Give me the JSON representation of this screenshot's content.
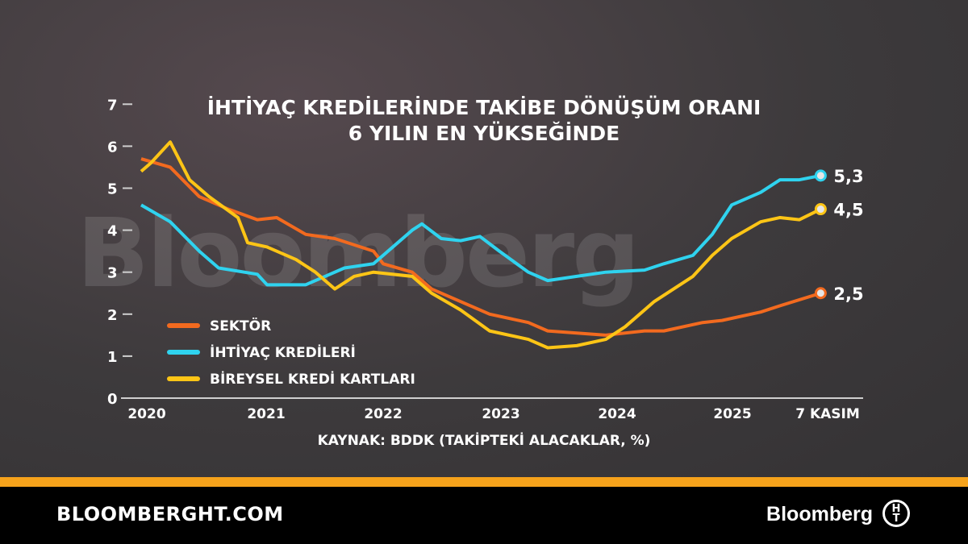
{
  "title_line1": "İHTİYAÇ KREDİLERİNDE TAKİBE DÖNÜŞÜM ORANI",
  "title_line2": "6 YILIN EN YÜKSEĞİNDE",
  "watermark": "Bloomberg",
  "source": "KAYNAK: BDDK (TAKİPTEKİ ALACAKLAR, %)",
  "footer": {
    "site": "BLOOMBERGHT.COM",
    "brand": "Bloomberg",
    "logo": "HT"
  },
  "chart_data": {
    "type": "line",
    "ylim": [
      0,
      7
    ],
    "yticks": [
      "0",
      "1",
      "2",
      "3",
      "4",
      "5",
      "6",
      "7"
    ],
    "xticks": [
      "2020",
      "2021",
      "2022",
      "2023",
      "2024",
      "2025",
      "7 KASIM"
    ],
    "legend_placement": "bottom-left",
    "series": [
      {
        "name": "SEKTÖR",
        "color": "#f26a1f",
        "end_label": "2,5",
        "points": [
          [
            "2020-01",
            5.7
          ],
          [
            "2020-04",
            5.5
          ],
          [
            "2020-07",
            4.8
          ],
          [
            "2020-10",
            4.5
          ],
          [
            "2021-01",
            4.25
          ],
          [
            "2021-03",
            4.3
          ],
          [
            "2021-06",
            3.9
          ],
          [
            "2021-09",
            3.8
          ],
          [
            "2022-01",
            3.5
          ],
          [
            "2022-02",
            3.2
          ],
          [
            "2022-05",
            3.0
          ],
          [
            "2022-07",
            2.6
          ],
          [
            "2022-10",
            2.3
          ],
          [
            "2023-01",
            2.0
          ],
          [
            "2023-05",
            1.8
          ],
          [
            "2023-07",
            1.6
          ],
          [
            "2024-01",
            1.5
          ],
          [
            "2024-05",
            1.6
          ],
          [
            "2024-07",
            1.6
          ],
          [
            "2024-11",
            1.8
          ],
          [
            "2025-01",
            1.85
          ],
          [
            "2025-05",
            2.05
          ],
          [
            "2025-07",
            2.2
          ],
          [
            "2025-11-07",
            2.5
          ]
        ]
      },
      {
        "name": "İHTİYAÇ KREDİLERİ",
        "color": "#2fd3ef",
        "end_label": "5,3",
        "points": [
          [
            "2020-01",
            4.6
          ],
          [
            "2020-04",
            4.2
          ],
          [
            "2020-07",
            3.5
          ],
          [
            "2020-09",
            3.1
          ],
          [
            "2021-01",
            2.95
          ],
          [
            "2021-02",
            2.7
          ],
          [
            "2021-06",
            2.7
          ],
          [
            "2021-08",
            2.9
          ],
          [
            "2021-10",
            3.1
          ],
          [
            "2022-01",
            3.2
          ],
          [
            "2022-03",
            3.6
          ],
          [
            "2022-05",
            4.0
          ],
          [
            "2022-06",
            4.15
          ],
          [
            "2022-08",
            3.8
          ],
          [
            "2022-10",
            3.75
          ],
          [
            "2022-12",
            3.85
          ],
          [
            "2023-02",
            3.5
          ],
          [
            "2023-05",
            3.0
          ],
          [
            "2023-07",
            2.8
          ],
          [
            "2023-10",
            2.9
          ],
          [
            "2024-01",
            3.0
          ],
          [
            "2024-05",
            3.05
          ],
          [
            "2024-07",
            3.2
          ],
          [
            "2024-10",
            3.4
          ],
          [
            "2024-12",
            3.9
          ],
          [
            "2025-02",
            4.6
          ],
          [
            "2025-05",
            4.9
          ],
          [
            "2025-07",
            5.2
          ],
          [
            "2025-09",
            5.2
          ],
          [
            "2025-11-07",
            5.3
          ]
        ]
      },
      {
        "name": "BİREYSEL KREDİ KARTLARI",
        "color": "#fdc516",
        "end_label": "4,5",
        "points": [
          [
            "2020-01",
            5.4
          ],
          [
            "2020-02",
            5.6
          ],
          [
            "2020-04",
            6.1
          ],
          [
            "2020-06",
            5.2
          ],
          [
            "2020-08",
            4.8
          ],
          [
            "2020-11",
            4.3
          ],
          [
            "2020-12",
            3.7
          ],
          [
            "2021-02",
            3.6
          ],
          [
            "2021-05",
            3.3
          ],
          [
            "2021-07",
            3.0
          ],
          [
            "2021-09",
            2.6
          ],
          [
            "2021-11",
            2.9
          ],
          [
            "2022-01",
            3.0
          ],
          [
            "2022-05",
            2.9
          ],
          [
            "2022-07",
            2.5
          ],
          [
            "2022-10",
            2.1
          ],
          [
            "2023-01",
            1.6
          ],
          [
            "2023-05",
            1.4
          ],
          [
            "2023-07",
            1.2
          ],
          [
            "2023-10",
            1.25
          ],
          [
            "2024-01",
            1.4
          ],
          [
            "2024-03",
            1.7
          ],
          [
            "2024-06",
            2.3
          ],
          [
            "2024-08",
            2.6
          ],
          [
            "2024-10",
            2.9
          ],
          [
            "2024-12",
            3.4
          ],
          [
            "2025-02",
            3.8
          ],
          [
            "2025-05",
            4.2
          ],
          [
            "2025-07",
            4.3
          ],
          [
            "2025-09",
            4.25
          ],
          [
            "2025-11-07",
            4.5
          ]
        ]
      }
    ]
  }
}
